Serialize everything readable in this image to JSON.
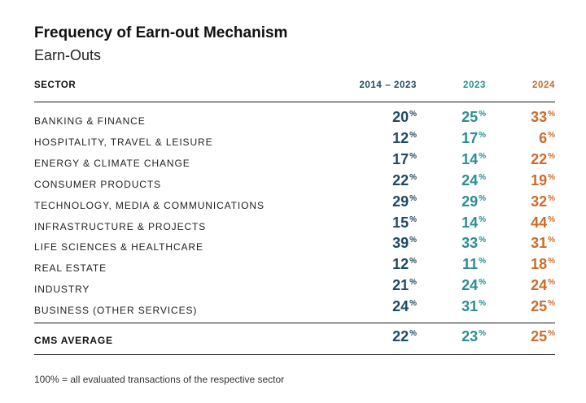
{
  "title": "Frequency of Earn-out Mechanism",
  "subtitle": "Earn-Outs",
  "columns": {
    "sector": "SECTOR",
    "c1": "2014 – 2023",
    "c2": "2023",
    "c3": "2024"
  },
  "rows": [
    {
      "sector": "BANKING & FINANCE",
      "c1": "20",
      "c2": "25",
      "c3": "33"
    },
    {
      "sector": "HOSPITALITY, TRAVEL & LEISURE",
      "c1": "12",
      "c2": "17",
      "c3": "6"
    },
    {
      "sector": "ENERGY & CLIMATE CHANGE",
      "c1": "17",
      "c2": "14",
      "c3": "22"
    },
    {
      "sector": "CONSUMER PRODUCTS",
      "c1": "22",
      "c2": "24",
      "c3": "19"
    },
    {
      "sector": "TECHNOLOGY, MEDIA & COMMUNICATIONS",
      "c1": "29",
      "c2": "29",
      "c3": "32"
    },
    {
      "sector": "INFRASTRUCTURE & PROJECTS",
      "c1": "15",
      "c2": "14",
      "c3": "44"
    },
    {
      "sector": "LIFE SCIENCES & HEALTHCARE",
      "c1": "39",
      "c2": "33",
      "c3": "31"
    },
    {
      "sector": "REAL ESTATE",
      "c1": "12",
      "c2": "11",
      "c3": "18"
    },
    {
      "sector": "INDUSTRY",
      "c1": "21",
      "c2": "24",
      "c3": "24"
    },
    {
      "sector": "BUSINESS (OTHER SERVICES)",
      "c1": "24",
      "c2": "31",
      "c3": "25"
    }
  ],
  "average": {
    "sector": "CMS AVERAGE",
    "c1": "22",
    "c2": "23",
    "c3": "25"
  },
  "percent_sign": "%",
  "footnote": "100% = all evaluated transactions of the respective sector",
  "colors": {
    "col1": "#1f4a63",
    "col2": "#2a8e94",
    "col3": "#cf6a2a"
  }
}
